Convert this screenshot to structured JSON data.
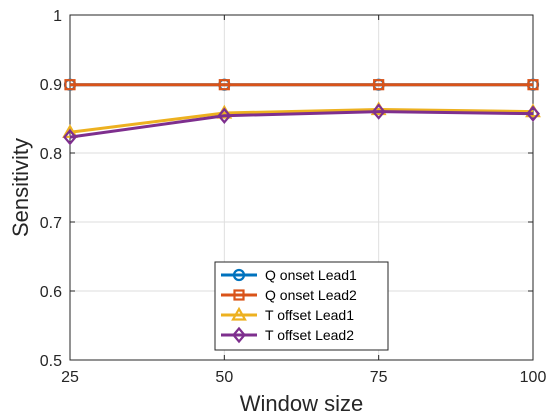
{
  "chart_data": {
    "type": "line",
    "title": "",
    "xlabel": "Window size",
    "ylabel": "Sensitivity",
    "x": [
      25,
      50,
      75,
      100
    ],
    "xlim": [
      25,
      100
    ],
    "ylim": [
      0.5,
      1
    ],
    "xticks": [
      "25",
      "50",
      "75",
      "100"
    ],
    "yticks": [
      "0.5",
      "0.6",
      "0.7",
      "0.8",
      "0.9",
      "1"
    ],
    "grid": true,
    "legend_position": "bottom-center",
    "series": [
      {
        "name": "Q onset Lead1",
        "values": [
          0.899,
          0.899,
          0.899,
          0.899
        ],
        "color": "#0072BD",
        "marker": "circle"
      },
      {
        "name": "Q onset Lead2",
        "values": [
          0.899,
          0.899,
          0.899,
          0.899
        ],
        "color": "#D95319",
        "marker": "square"
      },
      {
        "name": "T offset Lead1",
        "values": [
          0.83,
          0.858,
          0.863,
          0.86
        ],
        "color": "#EDB120",
        "marker": "triangle"
      },
      {
        "name": "T offset Lead2",
        "values": [
          0.823,
          0.854,
          0.86,
          0.857
        ],
        "color": "#7E2F8E",
        "marker": "diamond"
      }
    ]
  }
}
